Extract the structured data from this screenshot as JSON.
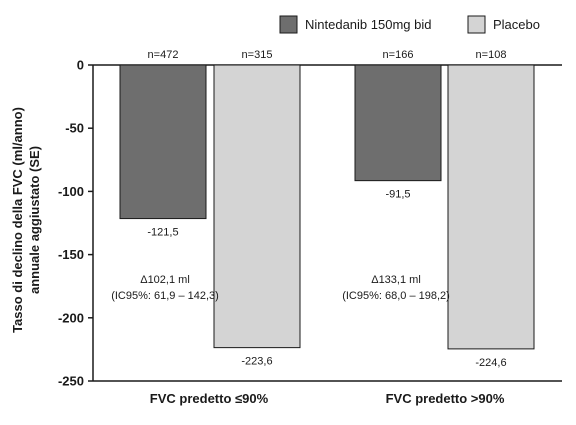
{
  "chart_data": {
    "type": "bar",
    "categories": [
      "FVC predetto ≤90%",
      "FVC predetto >90%"
    ],
    "series": [
      {
        "name": "Nintedanib 150mg bid",
        "color": "#6e6e6e",
        "values": [
          -121.5,
          -91.5
        ],
        "value_labels": [
          "-121,5",
          "-91,5"
        ],
        "n_labels": [
          "n=472",
          "n=166"
        ]
      },
      {
        "name": "Placebo",
        "color": "#d4d4d4",
        "values": [
          -223.6,
          -224.6
        ],
        "value_labels": [
          "-223,6",
          "-224,6"
        ],
        "n_labels": [
          "n=315",
          "n=108"
        ]
      }
    ],
    "ylabel_lines": [
      "Tasso di declino della FVC (ml/anno)",
      "annuale aggiustato (SE)"
    ],
    "ylim": [
      -250,
      0
    ],
    "yticks": [
      0,
      -50,
      -100,
      -150,
      -200,
      -250
    ],
    "ytick_labels": [
      "0",
      "-50",
      "-100",
      "-150",
      "-200",
      "-250"
    ],
    "annotations": [
      {
        "lines": [
          "Δ102,1 ml",
          "(IC95%: 61,9 – 142,3)"
        ]
      },
      {
        "lines": [
          "Δ133,1 ml",
          "(IC95%: 68,0 – 198,2)"
        ]
      }
    ],
    "legend_position": "top-right",
    "grid": false
  }
}
